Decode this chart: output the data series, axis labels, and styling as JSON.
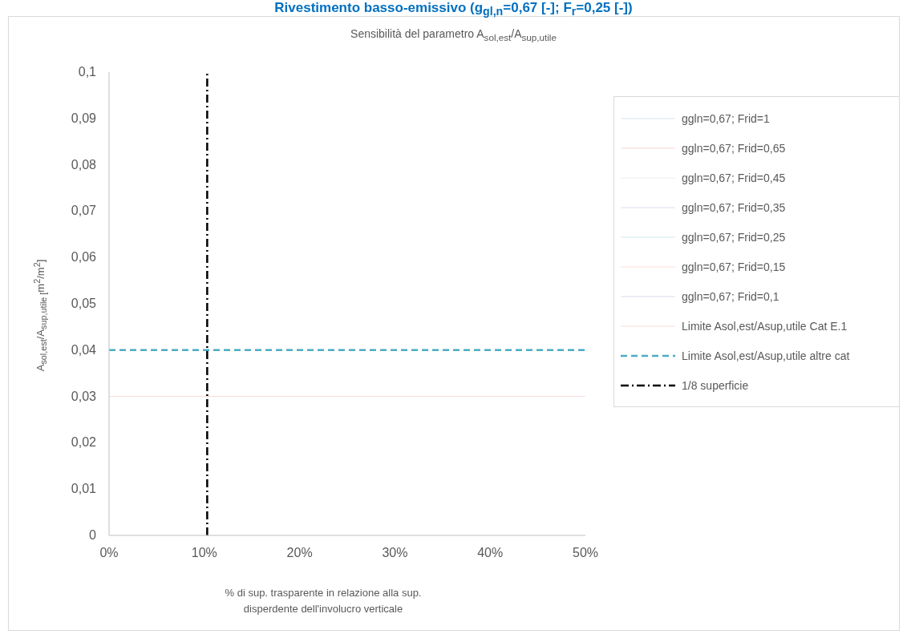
{
  "chart_data": {
    "type": "line",
    "title": "Rivestimento basso-emissivo (g$_{gl,n}$=0,67 [-]; F$_{r}$=0,25 [-])",
    "subtitle": "Sensibilità del parametro A$_{sol,est}$/A$_{sup,utile}$",
    "xlabel": "% di sup. trasparente in relazione alla sup. disperdente dell'involucro verticale",
    "ylabel": "A$_{sol,est}$/A$_{sup,utile [}$m$^{2}$/m$^{2}$]",
    "xlim": [
      0,
      50
    ],
    "xticks": [
      {
        "value": 0,
        "label": "0%"
      },
      {
        "value": 10,
        "label": "10%"
      },
      {
        "value": 20,
        "label": "20%"
      },
      {
        "value": 30,
        "label": "30%"
      },
      {
        "value": 40,
        "label": "40%"
      },
      {
        "value": 50,
        "label": "50%"
      }
    ],
    "ylim": [
      0,
      0.1
    ],
    "yticks": [
      0,
      {
        "value": 0.01,
        "label": "0,01"
      },
      {
        "value": 0.02,
        "label": "0,02"
      },
      {
        "value": 0.03,
        "label": "0,03"
      },
      {
        "value": 0.04,
        "label": "0,04"
      },
      {
        "value": 0.05,
        "label": "0,05"
      },
      {
        "value": 0.06,
        "label": "0,06"
      },
      {
        "value": 0.07,
        "label": "0,07"
      },
      {
        "value": 0.08,
        "label": "0,08"
      },
      {
        "value": 0.09,
        "label": "0,09"
      },
      {
        "value": 0.1,
        "label": "0,1"
      }
    ],
    "grid": false,
    "legend": "right",
    "marker": "none",
    "series": [
      {
        "name": "ggln=0,67; Frid=1",
        "color": "#dae3f3"
      },
      {
        "name": "ggln=0,67; Frid=0,65",
        "color": "#f8d5c8"
      },
      {
        "name": "ggln=0,67; Frid=0,45",
        "color": "#ececec"
      },
      {
        "name": "ggln=0,67; Frid=0,35",
        "color": "#dcdcee"
      },
      {
        "name": "ggln=0,67; Frid=0,25",
        "color": "#d2e8f0"
      },
      {
        "name": "ggln=0,67; Frid=0,15",
        "color": "#fbe0d8"
      },
      {
        "name": "ggln=0,67; Frid=0,1",
        "color": "#dcd8ec"
      },
      {
        "name": "Limite Asol,est/Asup,utile Cat E.1",
        "color": "#fadada",
        "line_style": "solid",
        "x": [
          0,
          50
        ],
        "values": [
          0.03,
          0.03
        ]
      },
      {
        "name": "Limite Asol,est/Asup,utile altre cat",
        "color": "#4bacc6",
        "line_style": "dashed",
        "x": [
          0,
          50
        ],
        "values": [
          0.04,
          0.04
        ]
      },
      {
        "name": "1/8 superficie",
        "color": "#000000",
        "line_style": "dashdot",
        "x": [
          10.3,
          10.3
        ],
        "values": [
          0,
          0.1
        ]
      }
    ]
  }
}
